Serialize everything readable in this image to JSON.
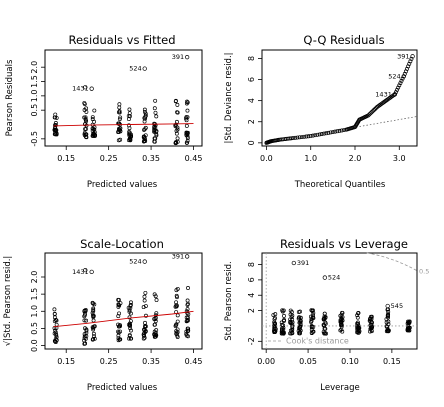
{
  "chart_data": [
    {
      "type": "scatter",
      "title": "Residuals vs Fitted",
      "xlabel": "Predicted values",
      "ylabel": "Pearson Residuals",
      "xlim": [
        0.1,
        0.47
      ],
      "ylim": [
        -0.75,
        2.6
      ],
      "xticks": [
        0.15,
        0.25,
        0.35,
        0.45
      ],
      "xtick_labels": [
        "0.15",
        "0.25",
        "0.35",
        "0.45"
      ],
      "yticks": [
        -0.5,
        0.5,
        1.0,
        1.5,
        2.0
      ],
      "ytick_labels": [
        "-0.5",
        "0.5",
        "1.0",
        "1.5",
        "2.0"
      ],
      "columns": [
        {
          "x": 0.125,
          "ymin": -0.35,
          "ymax": 0.35
        },
        {
          "x": 0.195,
          "ymin": -0.45,
          "ymax": 0.8
        },
        {
          "x": 0.215,
          "ymin": -0.4,
          "ymax": 0.55
        },
        {
          "x": 0.275,
          "ymin": -0.55,
          "ymax": 0.75
        },
        {
          "x": 0.3,
          "ymin": -0.55,
          "ymax": 0.55
        },
        {
          "x": 0.335,
          "ymin": -0.6,
          "ymax": 0.7
        },
        {
          "x": 0.36,
          "ymin": -0.6,
          "ymax": 0.95
        },
        {
          "x": 0.41,
          "ymin": -0.65,
          "ymax": 0.9
        },
        {
          "x": 0.435,
          "ymin": -0.65,
          "ymax": 0.85
        }
      ],
      "outliers": [
        {
          "x": 0.435,
          "y": 2.35,
          "label": "391"
        },
        {
          "x": 0.335,
          "y": 1.95,
          "label": "524"
        },
        {
          "x": 0.21,
          "y": 1.25,
          "label": "1431"
        },
        {
          "x": 0.195,
          "y": 1.3,
          "label": ""
        }
      ],
      "smooth": [
        [
          0.12,
          -0.05
        ],
        [
          0.2,
          -0.02
        ],
        [
          0.3,
          0.0
        ],
        [
          0.4,
          0.02
        ],
        [
          0.45,
          0.03
        ]
      ],
      "smooth_color": "#cc0000"
    },
    {
      "type": "scatter",
      "title": "Q-Q Residuals",
      "xlabel": "Theoretical Quantiles",
      "ylabel": "|Std. Deviance resid.|",
      "xlim": [
        -0.1,
        3.4
      ],
      "ylim": [
        -0.3,
        8.8
      ],
      "xticks": [
        0,
        1,
        2,
        3
      ],
      "xtick_labels": [
        "0.0",
        "1.0",
        "2.0",
        "3.0"
      ],
      "yticks": [
        0,
        2,
        4,
        6,
        8
      ],
      "ytick_labels": [
        "0",
        "2",
        "4",
        "6",
        "8"
      ],
      "curve": [
        [
          0.0,
          0.0
        ],
        [
          0.1,
          0.15
        ],
        [
          0.3,
          0.3
        ],
        [
          0.6,
          0.45
        ],
        [
          1.0,
          0.65
        ],
        [
          1.4,
          0.95
        ],
        [
          1.8,
          1.25
        ],
        [
          2.0,
          1.5
        ],
        [
          2.1,
          2.2
        ],
        [
          2.3,
          2.6
        ],
        [
          2.5,
          3.4
        ],
        [
          2.7,
          4.0
        ],
        [
          2.9,
          4.6
        ],
        [
          3.1,
          6.3
        ],
        [
          3.3,
          8.2
        ]
      ],
      "outliers": [
        {
          "x": 3.3,
          "y": 8.2,
          "label": "391"
        },
        {
          "x": 3.1,
          "y": 6.3,
          "label": "524"
        },
        {
          "x": 2.9,
          "y": 4.6,
          "label": "1431"
        }
      ],
      "refline": [
        [
          0.0,
          0.0
        ],
        [
          3.4,
          2.5
        ]
      ],
      "refline_style": "dotted"
    },
    {
      "type": "scatter",
      "title": "Scale-Location",
      "xlabel": "Predicted values",
      "ylabel": "√|Std. Pearson resid.|",
      "xlim": [
        0.1,
        0.47
      ],
      "ylim": [
        -0.1,
        2.7
      ],
      "xticks": [
        0.15,
        0.25,
        0.35,
        0.45
      ],
      "xtick_labels": [
        "0.15",
        "0.25",
        "0.35",
        "0.45"
      ],
      "yticks": [
        0.0,
        0.5,
        1.0,
        1.5,
        2.0
      ],
      "ytick_labels": [
        "0.0",
        "0.5",
        "1.0",
        "1.5",
        "2.0"
      ],
      "columns": [
        {
          "x": 0.125,
          "ymin": 0.1,
          "ymax": 1.1
        },
        {
          "x": 0.195,
          "ymin": 0.05,
          "ymax": 1.4
        },
        {
          "x": 0.215,
          "ymin": 0.1,
          "ymax": 1.3
        },
        {
          "x": 0.275,
          "ymin": 0.15,
          "ymax": 1.35
        },
        {
          "x": 0.3,
          "ymin": 0.2,
          "ymax": 1.3
        },
        {
          "x": 0.335,
          "ymin": 0.2,
          "ymax": 1.55
        },
        {
          "x": 0.36,
          "ymin": 0.25,
          "ymax": 1.6
        },
        {
          "x": 0.41,
          "ymin": 0.25,
          "ymax": 1.7
        },
        {
          "x": 0.435,
          "ymin": 0.25,
          "ymax": 1.7
        }
      ],
      "outliers": [
        {
          "x": 0.435,
          "y": 2.6,
          "label": "391"
        },
        {
          "x": 0.335,
          "y": 2.45,
          "label": "524"
        },
        {
          "x": 0.21,
          "y": 2.15,
          "label": "1431"
        },
        {
          "x": 0.195,
          "y": 2.2,
          "label": ""
        }
      ],
      "smooth": [
        [
          0.12,
          0.55
        ],
        [
          0.2,
          0.65
        ],
        [
          0.3,
          0.8
        ],
        [
          0.4,
          0.92
        ],
        [
          0.45,
          1.0
        ]
      ],
      "smooth_color": "#cc0000"
    },
    {
      "type": "scatter",
      "title": "Residuals vs Leverage",
      "xlabel": "Leverage",
      "ylabel": "Std. Pearson resid.",
      "xlim": [
        -0.005,
        0.18
      ],
      "ylim": [
        -3.0,
        9.5
      ],
      "xticks": [
        0.0,
        0.05,
        0.1,
        0.15
      ],
      "xtick_labels": [
        "0.00",
        "0.05",
        "0.10",
        "0.15"
      ],
      "yticks": [
        -2,
        2,
        4,
        6,
        8
      ],
      "ytick_labels": [
        "-2",
        "2",
        "4",
        "6",
        "8"
      ],
      "columns": [
        {
          "x": 0.01,
          "ymin": -0.8,
          "ymax": 1.8
        },
        {
          "x": 0.02,
          "ymin": -1.0,
          "ymax": 2.2
        },
        {
          "x": 0.03,
          "ymin": -1.0,
          "ymax": 2.5
        },
        {
          "x": 0.04,
          "ymin": -1.0,
          "ymax": 2.8
        },
        {
          "x": 0.055,
          "ymin": -1.0,
          "ymax": 2.6
        },
        {
          "x": 0.07,
          "ymin": -1.0,
          "ymax": 2.0
        },
        {
          "x": 0.09,
          "ymin": -0.9,
          "ymax": 1.8
        },
        {
          "x": 0.11,
          "ymin": -0.9,
          "ymax": 1.7
        },
        {
          "x": 0.125,
          "ymin": -0.8,
          "ymax": 1.3
        },
        {
          "x": 0.145,
          "ymin": -0.8,
          "ymax": 2.6
        },
        {
          "x": 0.17,
          "ymin": -0.6,
          "ymax": 0.6
        }
      ],
      "outliers": [
        {
          "x": 0.033,
          "y": 8.2,
          "label": "391"
        },
        {
          "x": 0.07,
          "y": 6.3,
          "label": "524"
        },
        {
          "x": 0.145,
          "y": 2.6,
          "label": "545"
        }
      ],
      "cooks_legend": "Cook's distance",
      "cooks_label": "0.5",
      "cooks_line_color": "#999999",
      "hline_y": 0,
      "vline_x": 0
    }
  ]
}
